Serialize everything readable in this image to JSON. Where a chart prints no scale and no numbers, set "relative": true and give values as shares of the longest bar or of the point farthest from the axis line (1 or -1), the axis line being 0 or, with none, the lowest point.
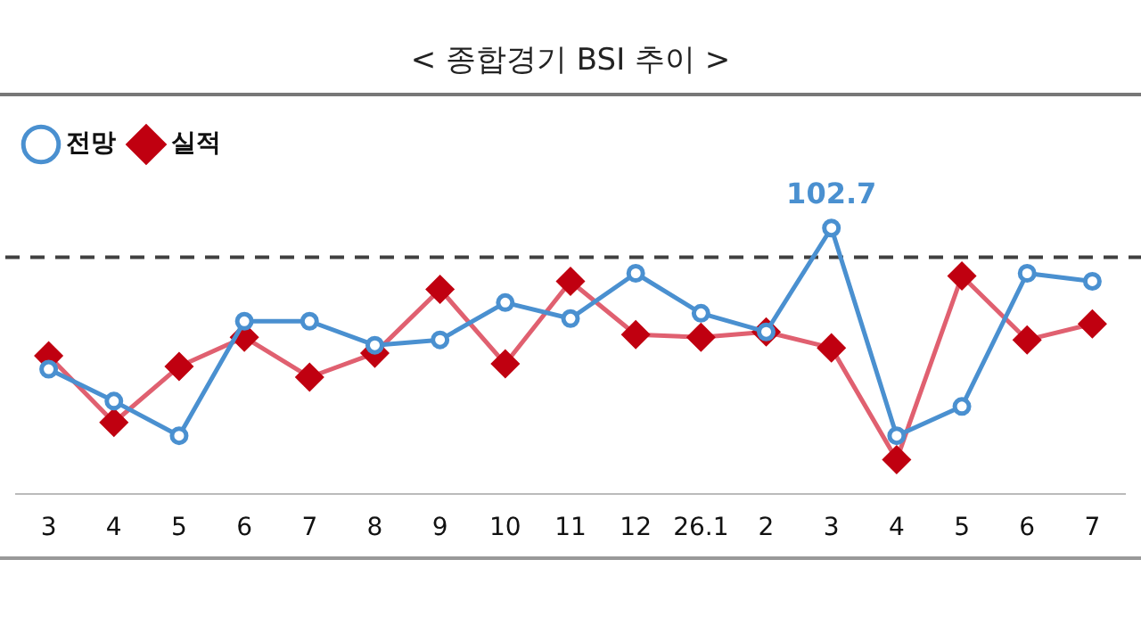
{
  "chart_data": {
    "type": "line",
    "title": "< 종합경기 BSI 추이 >",
    "relative": true,
    "legend": "top left",
    "grid": false,
    "categories": [
      "3",
      "4",
      "5",
      "6",
      "7",
      "8",
      "9",
      "10",
      "11",
      "12",
      "26.1",
      "2",
      "3",
      "4",
      "5",
      "6",
      "7"
    ],
    "series": [
      {
        "name": "전망",
        "color": "#4a90d0",
        "marker": "circle",
        "values": [
          0.47,
          0.35,
          0.22,
          0.65,
          0.65,
          0.56,
          0.58,
          0.72,
          0.66,
          0.83,
          0.68,
          0.61,
          1,
          0.22,
          0.33,
          0.83,
          0.8
        ]
      },
      {
        "name": "실적",
        "color": "#e06070",
        "marker": "diamond",
        "values": [
          0.52,
          0.27,
          0.48,
          0.59,
          0.44,
          0.53,
          0.77,
          0.49,
          0.8,
          0.6,
          0.59,
          0.61,
          0.55,
          0.13,
          0.82,
          0.58,
          0.64
        ]
      }
    ],
    "annotations": [
      "102.7"
    ],
    "ref_lines": [
      {
        "axis": "y",
        "value": 0.89,
        "color": "#404040",
        "line_style": "dashed"
      }
    ]
  }
}
